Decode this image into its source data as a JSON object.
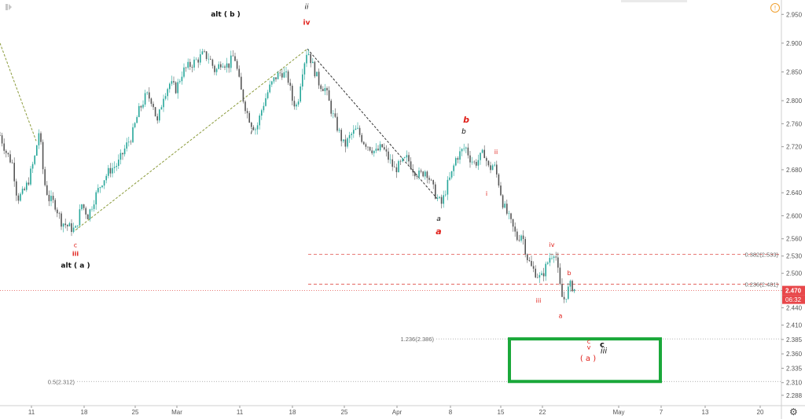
{
  "chart_data": {
    "type": "candlestick",
    "symbol_last": "2.470",
    "countdown": "06:32",
    "ylim": [
      2.27,
      2.975
    ],
    "y_ticks": [
      "2.288",
      "2.310",
      "2.335",
      "2.360",
      "2.385",
      "2.410",
      "2.440",
      "2.470",
      "2.500",
      "2.530",
      "2.560",
      "2.600",
      "2.640",
      "2.680",
      "2.720",
      "2.760",
      "2.800",
      "2.850",
      "2.900",
      "2.950"
    ],
    "x_ticks": [
      "11",
      "18",
      "25",
      "Mar",
      "11",
      "18",
      "25",
      "Apr",
      "8",
      "15",
      "22",
      "May",
      "7",
      "13",
      "20"
    ],
    "price_path": [
      [
        0,
        2.74
      ],
      [
        8,
        2.71
      ],
      [
        16,
        2.69
      ],
      [
        22,
        2.63
      ],
      [
        30,
        2.64
      ],
      [
        36,
        2.66
      ],
      [
        44,
        2.7
      ],
      [
        50,
        2.75
      ],
      [
        56,
        2.66
      ],
      [
        62,
        2.63
      ],
      [
        70,
        2.62
      ],
      [
        78,
        2.59
      ],
      [
        88,
        2.58
      ],
      [
        96,
        2.575
      ],
      [
        104,
        2.62
      ],
      [
        112,
        2.6
      ],
      [
        120,
        2.63
      ],
      [
        130,
        2.66
      ],
      [
        140,
        2.68
      ],
      [
        150,
        2.69
      ],
      [
        160,
        2.72
      ],
      [
        168,
        2.74
      ],
      [
        176,
        2.78
      ],
      [
        186,
        2.81
      ],
      [
        194,
        2.8
      ],
      [
        200,
        2.76
      ],
      [
        208,
        2.81
      ],
      [
        216,
        2.83
      ],
      [
        224,
        2.82
      ],
      [
        232,
        2.85
      ],
      [
        240,
        2.86
      ],
      [
        250,
        2.87
      ],
      [
        258,
        2.88
      ],
      [
        266,
        2.875
      ],
      [
        274,
        2.85
      ],
      [
        282,
        2.87
      ],
      [
        290,
        2.86
      ],
      [
        298,
        2.88
      ],
      [
        306,
        2.82
      ],
      [
        314,
        2.78
      ],
      [
        320,
        2.76
      ],
      [
        326,
        2.75
      ],
      [
        334,
        2.79
      ],
      [
        342,
        2.82
      ],
      [
        350,
        2.84
      ],
      [
        358,
        2.85
      ],
      [
        366,
        2.84
      ],
      [
        372,
        2.8
      ],
      [
        378,
        2.79
      ],
      [
        384,
        2.85
      ],
      [
        391,
        2.89
      ],
      [
        398,
        2.86
      ],
      [
        406,
        2.83
      ],
      [
        414,
        2.82
      ],
      [
        422,
        2.78
      ],
      [
        430,
        2.75
      ],
      [
        438,
        2.72
      ],
      [
        446,
        2.74
      ],
      [
        454,
        2.75
      ],
      [
        462,
        2.73
      ],
      [
        470,
        2.72
      ],
      [
        478,
        2.71
      ],
      [
        486,
        2.72
      ],
      [
        494,
        2.7
      ],
      [
        502,
        2.68
      ],
      [
        510,
        2.69
      ],
      [
        518,
        2.7
      ],
      [
        526,
        2.68
      ],
      [
        534,
        2.67
      ],
      [
        542,
        2.68
      ],
      [
        550,
        2.65
      ],
      [
        556,
        2.63
      ],
      [
        562,
        2.62
      ],
      [
        568,
        2.65
      ],
      [
        574,
        2.67
      ],
      [
        580,
        2.7
      ],
      [
        586,
        2.71
      ],
      [
        592,
        2.72
      ],
      [
        598,
        2.7
      ],
      [
        604,
        2.69
      ],
      [
        610,
        2.7
      ],
      [
        616,
        2.71
      ],
      [
        622,
        2.68
      ],
      [
        628,
        2.69
      ],
      [
        634,
        2.66
      ],
      [
        640,
        2.62
      ],
      [
        646,
        2.6
      ],
      [
        652,
        2.58
      ],
      [
        658,
        2.56
      ],
      [
        664,
        2.57
      ],
      [
        670,
        2.53
      ],
      [
        676,
        2.51
      ],
      [
        682,
        2.5
      ],
      [
        688,
        2.49
      ],
      [
        694,
        2.51
      ],
      [
        700,
        2.53
      ],
      [
        706,
        2.54
      ],
      [
        710,
        2.5
      ],
      [
        714,
        2.46
      ],
      [
        718,
        2.455
      ],
      [
        722,
        2.47
      ],
      [
        726,
        2.48
      ],
      [
        732,
        2.47
      ]
    ],
    "trend_lines": [
      {
        "style": "dashed",
        "color": "#8a9a3a",
        "points": [
          [
            0,
            2.9
          ],
          [
            46,
            2.73
          ]
        ]
      },
      {
        "style": "dashed",
        "color": "#8a9a3a",
        "points": [
          [
            96,
            2.575
          ],
          [
            391,
            2.89
          ]
        ]
      },
      {
        "style": "dashed",
        "color": "#333333",
        "points": [
          [
            391,
            2.89
          ],
          [
            556,
            2.63
          ]
        ]
      }
    ],
    "levels": [
      {
        "label": "0.382(2.533)",
        "value": 2.533,
        "color": "#e0504a",
        "style": "dashed",
        "x_start": 392
      },
      {
        "label": "0.236(2.481)",
        "value": 2.481,
        "color": "#e0504a",
        "style": "dashed",
        "x_start": 392
      },
      {
        "label": "",
        "value": 2.47,
        "color": "#e0504a",
        "style": "dotted",
        "x_start": 0
      },
      {
        "label": "1.236(2.386)",
        "value": 2.386,
        "color": "#999999",
        "style": "dotted",
        "x_start": 555
      },
      {
        "label": "0.5(2.312)",
        "value": 2.312,
        "color": "#999999",
        "style": "dotted",
        "x_start": 98
      }
    ],
    "target_zone": {
      "y_top": 2.386,
      "y_bottom": 2.312,
      "x_start": 648,
      "x_end": 840,
      "color": "#1aa83a"
    },
    "annotations": [
      {
        "text": "alt ( b )",
        "x": 287,
        "y": 2.946,
        "color": "#111111",
        "weight": "bold",
        "style": "normal",
        "size": 9
      },
      {
        "text": "ii",
        "x": 390,
        "y": 2.959,
        "color": "#111111",
        "weight": "normal",
        "style": "italic",
        "size": 9
      },
      {
        "text": "iv",
        "x": 390,
        "y": 2.932,
        "color": "#e0201a",
        "weight": "bold",
        "style": "normal",
        "size": 9
      },
      {
        "text": "i",
        "x": 320,
        "y": 2.742,
        "color": "#111111",
        "weight": "normal",
        "style": "italic",
        "size": 9
      },
      {
        "text": "b",
        "x": 593,
        "y": 2.762,
        "color": "#e0201a",
        "weight": "bold",
        "style": "italic",
        "size": 11
      },
      {
        "text": "b",
        "x": 590,
        "y": 2.743,
        "color": "#111111",
        "weight": "normal",
        "style": "italic",
        "size": 9
      },
      {
        "text": "ii",
        "x": 631,
        "y": 2.707,
        "color": "#e0201a",
        "weight": "normal",
        "style": "normal",
        "size": 8
      },
      {
        "text": "i",
        "x": 619,
        "y": 2.635,
        "color": "#e0201a",
        "weight": "normal",
        "style": "normal",
        "size": 8
      },
      {
        "text": "a",
        "x": 558,
        "y": 2.591,
        "color": "#111111",
        "weight": "normal",
        "style": "italic",
        "size": 9
      },
      {
        "text": "a",
        "x": 558,
        "y": 2.568,
        "color": "#e0201a",
        "weight": "bold",
        "style": "italic",
        "size": 11
      },
      {
        "text": "c",
        "x": 96,
        "y": 2.545,
        "color": "#e0201a",
        "weight": "normal",
        "style": "normal",
        "size": 8
      },
      {
        "text": "iii",
        "x": 96,
        "y": 2.53,
        "color": "#e0201a",
        "weight": "bold",
        "style": "normal",
        "size": 8
      },
      {
        "text": "alt ( a )",
        "x": 96,
        "y": 2.51,
        "color": "#111111",
        "weight": "bold",
        "style": "normal",
        "size": 9
      },
      {
        "text": "iv",
        "x": 702,
        "y": 2.546,
        "color": "#e0201a",
        "weight": "normal",
        "style": "normal",
        "size": 8
      },
      {
        "text": "b",
        "x": 724,
        "y": 2.497,
        "color": "#e0201a",
        "weight": "normal",
        "style": "normal",
        "size": 8
      },
      {
        "text": "iii",
        "x": 685,
        "y": 2.449,
        "color": "#e0201a",
        "weight": "normal",
        "style": "normal",
        "size": 8
      },
      {
        "text": "a",
        "x": 713,
        "y": 2.422,
        "color": "#e0201a",
        "weight": "normal",
        "style": "normal",
        "size": 8
      },
      {
        "text": "c",
        "x": 749,
        "y": 2.378,
        "color": "#e0201a",
        "weight": "normal",
        "style": "normal",
        "size": 8
      },
      {
        "text": "v",
        "x": 749,
        "y": 2.368,
        "color": "#e0201a",
        "weight": "normal",
        "style": "normal",
        "size": 8
      },
      {
        "text": "c",
        "x": 766,
        "y": 2.372,
        "color": "#111111",
        "weight": "bold",
        "style": "normal",
        "size": 10
      },
      {
        "text": "iii",
        "x": 768,
        "y": 2.361,
        "color": "#111111",
        "weight": "normal",
        "style": "italic",
        "size": 10
      },
      {
        "text": "( a )",
        "x": 748,
        "y": 2.348,
        "color": "#e0201a",
        "weight": "normal",
        "style": "normal",
        "size": 10
      }
    ],
    "colors": {
      "up": "#26a69a",
      "down": "#555555",
      "last_price": "#e8474a"
    },
    "grid": false
  },
  "icons": {
    "logo": "tradingview-logo-icon",
    "alert": "alert-clock-icon",
    "settings": "gear-icon"
  }
}
